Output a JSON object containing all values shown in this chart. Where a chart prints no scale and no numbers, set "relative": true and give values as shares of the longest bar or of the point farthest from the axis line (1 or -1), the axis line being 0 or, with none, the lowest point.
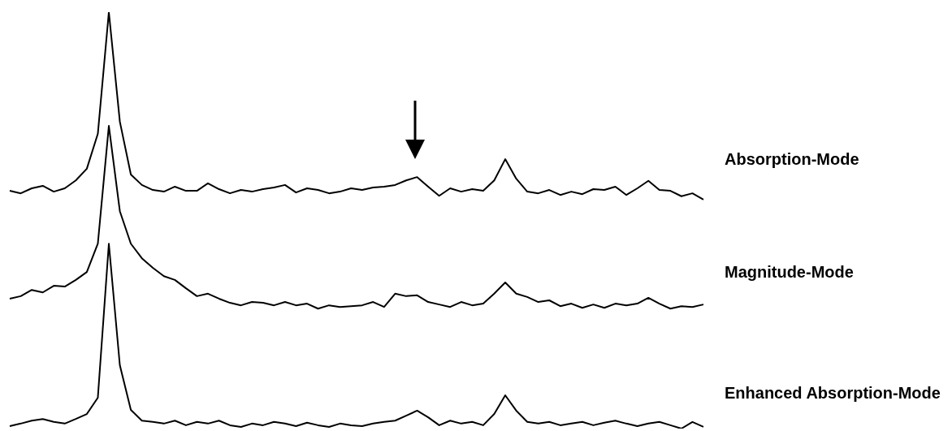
{
  "chart_data": {
    "type": "line",
    "relative": true,
    "marker": "none",
    "categories": [
      null,
      null,
      null,
      null,
      null,
      null,
      null,
      null,
      null,
      null,
      null,
      null,
      null,
      null,
      null,
      null,
      null,
      null,
      null,
      null,
      null,
      null,
      null,
      null,
      null,
      null,
      null,
      null,
      null,
      null,
      null,
      null,
      null,
      null,
      null,
      null,
      null,
      null,
      null,
      null,
      null,
      null,
      null,
      null,
      null,
      null,
      null,
      null,
      null,
      null,
      null,
      null,
      null,
      null,
      null,
      null,
      null,
      null,
      null,
      null,
      null,
      null,
      null,
      null
    ],
    "series": [
      {
        "name": "Absorption-Mode",
        "color": "#000000",
        "values": [
          0.571,
          0.565,
          0.577,
          0.583,
          0.569,
          0.577,
          0.596,
          0.624,
          0.708,
          1,
          0.737,
          0.61,
          0.585,
          0.573,
          0.569,
          0.581,
          0.571,
          0.571,
          0.589,
          0.575,
          0.565,
          0.573,
          0.569,
          0.575,
          0.579,
          0.585,
          0.567,
          0.577,
          0.573,
          0.565,
          0.569,
          0.577,
          0.573,
          0.579,
          0.581,
          0.585,
          0.596,
          0.604,
          0.581,
          0.559,
          0.577,
          0.569,
          0.575,
          0.571,
          0.596,
          0.647,
          0.6,
          0.569,
          0.565,
          0.573,
          0.561,
          0.569,
          0.563,
          0.575,
          0.573,
          0.581,
          0.561,
          0.577,
          0.595,
          0.573,
          0.571,
          0.558,
          0.565,
          0.55
        ]
      },
      {
        "name": "Magnitude-Mode",
        "color": "#000000",
        "values": [
          0.312,
          0.318,
          0.333,
          0.327,
          0.343,
          0.341,
          0.357,
          0.376,
          0.444,
          0.727,
          0.522,
          0.444,
          0.409,
          0.386,
          0.366,
          0.357,
          0.337,
          0.318,
          0.324,
          0.312,
          0.302,
          0.296,
          0.304,
          0.302,
          0.296,
          0.304,
          0.296,
          0.3,
          0.288,
          0.296,
          0.292,
          0.294,
          0.296,
          0.304,
          0.292,
          0.324,
          0.318,
          0.32,
          0.304,
          0.298,
          0.292,
          0.304,
          0.296,
          0.3,
          0.324,
          0.351,
          0.324,
          0.316,
          0.304,
          0.308,
          0.294,
          0.3,
          0.29,
          0.298,
          0.29,
          0.3,
          0.296,
          0.3,
          0.314,
          0.3,
          0.288,
          0.294,
          0.292,
          0.298
        ]
      },
      {
        "name": "Enhanced Absorption-Mode",
        "color": "#000000",
        "values": [
          0.006,
          0.012,
          0.019,
          0.023,
          0.016,
          0.012,
          0.023,
          0.035,
          0.074,
          0.444,
          0.152,
          0.045,
          0.019,
          0.016,
          0.012,
          0.019,
          0.008,
          0.016,
          0.012,
          0.019,
          0.008,
          0.004,
          0.012,
          0.008,
          0.016,
          0.012,
          0.006,
          0.014,
          0.008,
          0.004,
          0.012,
          0.008,
          0.006,
          0.012,
          0.016,
          0.019,
          0.031,
          0.043,
          0.027,
          0.008,
          0.019,
          0.012,
          0.016,
          0.008,
          0.035,
          0.08,
          0.043,
          0.016,
          0.012,
          0.016,
          0.008,
          0.012,
          0.016,
          0.008,
          0.014,
          0.019,
          0.012,
          0.006,
          0.012,
          0.016,
          0.008,
          0,
          0.016,
          0.004
        ]
      }
    ]
  }
}
